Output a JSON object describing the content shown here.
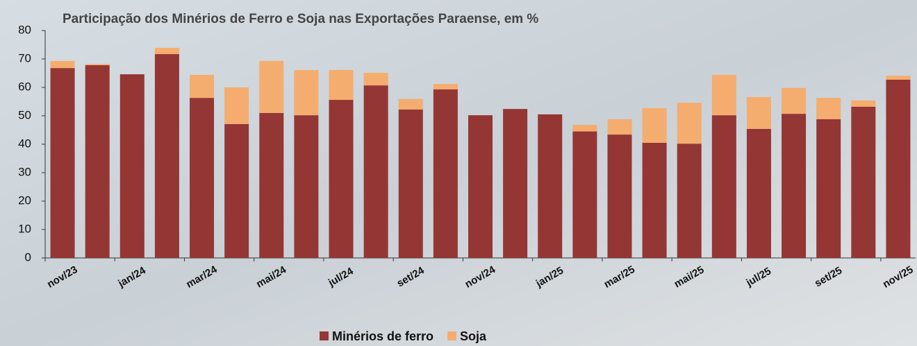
{
  "chart_data": {
    "type": "stacked-bar",
    "title": "Participação dos Minérios de Ferro e Soja nas Exportações Paraense, em %",
    "categories": [
      "nov/23",
      null,
      "jan/24",
      null,
      "mar/24",
      null,
      "mai/24",
      null,
      "jul/24",
      null,
      "set/24",
      null,
      "nov/24",
      null,
      "jan/25",
      null,
      "mar/25",
      null,
      "mai/25",
      null,
      "jul/25",
      null,
      "set/25",
      null,
      "nov/25"
    ],
    "series": [
      {
        "name": "Minérios de ferro",
        "color": "#943634",
        "values": [
          66.8,
          67.8,
          64.6,
          71.7,
          56.3,
          47.1,
          51,
          50.2,
          55.6,
          60.7,
          52.2,
          59.3,
          50.2,
          52.4,
          50.5,
          44.5,
          43.4,
          40.5,
          40.2,
          50.2,
          45.4,
          50.7,
          48.8,
          53.2,
          62.7
        ]
      },
      {
        "name": "Soja",
        "color": "#f4ad6e",
        "values": [
          2.5,
          0.4,
          0,
          2.2,
          8.1,
          12.9,
          18.3,
          15.9,
          10.5,
          4.4,
          3.7,
          1.9,
          0,
          0,
          0,
          2.3,
          5.4,
          12.2,
          14.4,
          14.2,
          11.2,
          9.1,
          7.5,
          2.2,
          1.4
        ]
      }
    ],
    "ylim": [
      0,
      80
    ],
    "yticks": [
      0,
      10,
      20,
      30,
      40,
      50,
      60,
      70,
      80
    ],
    "legend": "bottom"
  }
}
